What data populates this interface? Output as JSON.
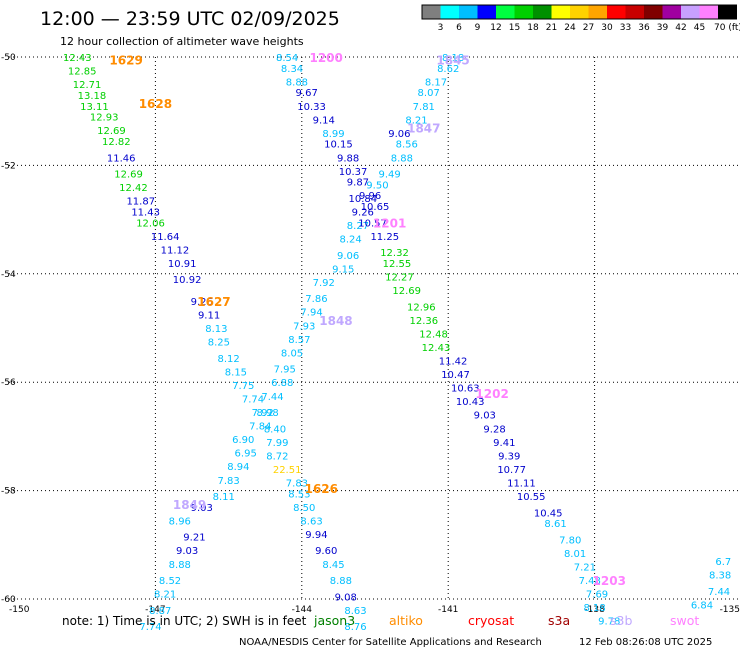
{
  "header": {
    "title": "12:00 — 23:59 UTC 02/09/2025",
    "subtitle": "12 hour collection of altimeter wave heights"
  },
  "scale": {
    "labels": [
      "3",
      "6",
      "9",
      "12",
      "15",
      "18",
      "21",
      "24",
      "27",
      "30",
      "33",
      "36",
      "39",
      "42",
      "45",
      "70 (ft)"
    ],
    "colors": [
      "#7f7f7f",
      "#00ffff",
      "#00bfff",
      "#0000ff",
      "#00ff40",
      "#00d000",
      "#009000",
      "#ffff00",
      "#ffd200",
      "#ffa500",
      "#ff0000",
      "#c80000",
      "#800000",
      "#a000a0",
      "#c8a0ff",
      "#ff80ff",
      "#000000"
    ]
  },
  "note": {
    "text": "note:  1) Time is in UTC; 2) SWH is in feet",
    "missions": [
      {
        "name": "jason3",
        "color": "#007f00"
      },
      {
        "name": "altiko",
        "color": "#ff8c00"
      },
      {
        "name": "cryosat",
        "color": "#ff0000"
      },
      {
        "name": "s3a",
        "color": "#a00000"
      },
      {
        "name": "s3b",
        "color": "#c0a8ff"
      },
      {
        "name": "swot",
        "color": "#ff80ff"
      }
    ]
  },
  "footer": {
    "credit": "NOAA/NESDIS Center for Satellite Applications and Research",
    "timestamp": "12 Feb 08:26:08 UTC 2025"
  },
  "chart_data": {
    "type": "scatter",
    "title": "12:00 — 23:59 UTC 02/09/2025",
    "x_ticks": [
      "-150",
      "-147",
      "-144",
      "-141",
      "-138",
      "-135"
    ],
    "y_ticks": [
      "-50",
      "-52",
      "-54",
      "-56",
      "-58",
      "-60"
    ],
    "xlim": [
      -150,
      -135
    ],
    "ylim": [
      -60,
      -50
    ],
    "grid": true,
    "unit": "ft",
    "labels": [
      {
        "text": "1629",
        "lon": -147.6,
        "lat": -50.05,
        "color": "#ff8c00"
      },
      {
        "text": "1628",
        "lon": -147.0,
        "lat": -50.85,
        "color": "#ff8c00"
      },
      {
        "text": "1627",
        "lon": -145.8,
        "lat": -54.5,
        "color": "#ff8c00"
      },
      {
        "text": "1626",
        "lon": -143.6,
        "lat": -57.95,
        "color": "#ff8c00"
      },
      {
        "text": "1200",
        "lon": -143.5,
        "lat": -50.0,
        "color": "#ff80ff"
      },
      {
        "text": "1845",
        "lon": -140.9,
        "lat": -50.05,
        "color": "#c0a8ff"
      },
      {
        "text": "1847",
        "lon": -141.5,
        "lat": -51.3,
        "color": "#c0a8ff"
      },
      {
        "text": "1201",
        "lon": -142.2,
        "lat": -53.05,
        "color": "#ff80ff"
      },
      {
        "text": "1848",
        "lon": -143.3,
        "lat": -54.85,
        "color": "#c0a8ff"
      },
      {
        "text": "1202",
        "lon": -140.1,
        "lat": -56.2,
        "color": "#ff80ff"
      },
      {
        "text": "1849",
        "lon": -146.3,
        "lat": -58.25,
        "color": "#c0a8ff"
      },
      {
        "text": "1203",
        "lon": -137.7,
        "lat": -59.65,
        "color": "#ff80ff"
      }
    ],
    "series": [
      {
        "color": "#00d000",
        "points": [
          {
            "lon": -148.6,
            "lat": -50.0,
            "v": "12.43"
          },
          {
            "lon": -148.5,
            "lat": -50.25,
            "v": "12.85"
          },
          {
            "lon": -148.4,
            "lat": -50.5,
            "v": "12.71"
          },
          {
            "lon": -148.3,
            "lat": -50.7,
            "v": "13.18"
          },
          {
            "lon": -148.25,
            "lat": -50.9,
            "v": "13.11"
          },
          {
            "lon": -148.05,
            "lat": -51.1,
            "v": "12.93"
          },
          {
            "lon": -147.9,
            "lat": -51.35,
            "v": "12.69"
          },
          {
            "lon": -147.8,
            "lat": -51.55,
            "v": "12.82"
          }
        ]
      },
      {
        "color": "#00d000",
        "points": [
          {
            "lon": -147.55,
            "lat": -52.15,
            "v": "12.69"
          },
          {
            "lon": -147.45,
            "lat": -52.4,
            "v": "12.42"
          },
          {
            "lon": -147.1,
            "lat": -53.05,
            "v": "12.06"
          }
        ]
      },
      {
        "color": "#0000cc",
        "points": [
          {
            "lon": -147.7,
            "lat": -51.85,
            "v": "11.46"
          },
          {
            "lon": -147.3,
            "lat": -52.65,
            "v": "11.87"
          },
          {
            "lon": -147.2,
            "lat": -52.85,
            "v": "11.43"
          },
          {
            "lon": -146.8,
            "lat": -53.3,
            "v": "11.64"
          },
          {
            "lon": -146.6,
            "lat": -53.55,
            "v": "11.12"
          },
          {
            "lon": -146.45,
            "lat": -53.8,
            "v": "10.91"
          },
          {
            "lon": -146.35,
            "lat": -54.1,
            "v": "10.92"
          },
          {
            "lon": -146.05,
            "lat": -54.5,
            "v": "9.26"
          },
          {
            "lon": -145.9,
            "lat": -54.75,
            "v": "9.11"
          }
        ]
      },
      {
        "color": "#00bfff",
        "points": [
          {
            "lon": -145.75,
            "lat": -55.0,
            "v": "8.13"
          },
          {
            "lon": -145.7,
            "lat": -55.25,
            "v": "8.25"
          },
          {
            "lon": -145.5,
            "lat": -55.55,
            "v": "8.12"
          },
          {
            "lon": -145.35,
            "lat": -55.8,
            "v": "8.15"
          },
          {
            "lon": -145.2,
            "lat": -56.05,
            "v": "7.75"
          },
          {
            "lon": -145.0,
            "lat": -56.3,
            "v": "7.74"
          },
          {
            "lon": -144.8,
            "lat": -56.55,
            "v": "7.92"
          },
          {
            "lon": -144.85,
            "lat": -56.8,
            "v": "7.84"
          },
          {
            "lon": -145.2,
            "lat": -57.05,
            "v": "6.90"
          },
          {
            "lon": -145.15,
            "lat": -57.3,
            "v": "6.95"
          },
          {
            "lon": -145.3,
            "lat": -57.55,
            "v": "8.94"
          },
          {
            "lon": -145.5,
            "lat": -57.8,
            "v": "7.83"
          },
          {
            "lon": -145.6,
            "lat": -58.1,
            "v": "8.11"
          }
        ]
      },
      {
        "color": "#0000cc",
        "points": [
          {
            "lon": -146.05,
            "lat": -58.3,
            "v": "9.03"
          },
          {
            "lon": -146.2,
            "lat": -58.85,
            "v": "9.21"
          },
          {
            "lon": -146.35,
            "lat": -59.1,
            "v": "9.03"
          }
        ]
      },
      {
        "color": "#00bfff",
        "points": [
          {
            "lon": -146.5,
            "lat": -58.55,
            "v": "8.96"
          },
          {
            "lon": -146.5,
            "lat": -59.35,
            "v": "8.88"
          },
          {
            "lon": -146.7,
            "lat": -59.65,
            "v": "8.52"
          },
          {
            "lon": -146.8,
            "lat": -59.9,
            "v": "8.21"
          },
          {
            "lon": -146.9,
            "lat": -60.2,
            "v": "8.87"
          },
          {
            "lon": -147.1,
            "lat": -60.5,
            "v": "7.74"
          }
        ]
      },
      {
        "color": "#00bfff",
        "points": [
          {
            "lon": -144.3,
            "lat": -50.0,
            "v": "8.54"
          },
          {
            "lon": -144.2,
            "lat": -50.2,
            "v": "8.34"
          },
          {
            "lon": -144.1,
            "lat": -50.45,
            "v": "8.88"
          }
        ]
      },
      {
        "color": "#0000cc",
        "points": [
          {
            "lon": -143.9,
            "lat": -50.65,
            "v": "9.67"
          },
          {
            "lon": -143.8,
            "lat": -50.9,
            "v": "10.33"
          },
          {
            "lon": -143.55,
            "lat": -51.15,
            "v": "9.14"
          },
          {
            "lon": -143.25,
            "lat": -51.6,
            "v": "10.15"
          },
          {
            "lon": -143.05,
            "lat": -51.85,
            "v": "9.88"
          },
          {
            "lon": -142.95,
            "lat": -52.1,
            "v": "10.37"
          },
          {
            "lon": -142.85,
            "lat": -52.3,
            "v": "9.87"
          },
          {
            "lon": -142.75,
            "lat": -52.6,
            "v": "10.84"
          },
          {
            "lon": -142.75,
            "lat": -52.85,
            "v": "9.26"
          }
        ]
      },
      {
        "color": "#00bfff",
        "points": [
          {
            "lon": -143.35,
            "lat": -51.4,
            "v": "8.99"
          },
          {
            "lon": -142.85,
            "lat": -53.1,
            "v": "8.27"
          },
          {
            "lon": -143.0,
            "lat": -53.35,
            "v": "8.24"
          },
          {
            "lon": -143.05,
            "lat": -53.65,
            "v": "9.06"
          },
          {
            "lon": -143.15,
            "lat": -53.9,
            "v": "9.15"
          },
          {
            "lon": -143.55,
            "lat": -54.15,
            "v": "7.92"
          },
          {
            "lon": -143.7,
            "lat": -54.45,
            "v": "7.86"
          },
          {
            "lon": -143.8,
            "lat": -54.7,
            "v": "7.94"
          },
          {
            "lon": -143.95,
            "lat": -54.95,
            "v": "7.93"
          },
          {
            "lon": -144.05,
            "lat": -55.2,
            "v": "8.57"
          },
          {
            "lon": -144.2,
            "lat": -55.45,
            "v": "8.05"
          },
          {
            "lon": -144.35,
            "lat": -55.75,
            "v": "7.95"
          },
          {
            "lon": -144.4,
            "lat": -56.0,
            "v": "6.88"
          },
          {
            "lon": -144.6,
            "lat": -56.25,
            "v": "7.44"
          },
          {
            "lon": -144.7,
            "lat": -56.55,
            "v": "8.98"
          },
          {
            "lon": -144.55,
            "lat": -56.85,
            "v": "8.40"
          },
          {
            "lon": -144.5,
            "lat": -57.1,
            "v": "7.99"
          },
          {
            "lon": -144.5,
            "lat": -57.35,
            "v": "8.72"
          },
          {
            "lon": -144.1,
            "lat": -57.85,
            "v": "7.83"
          },
          {
            "lon": -144.05,
            "lat": -58.05,
            "v": "8.53"
          },
          {
            "lon": -143.95,
            "lat": -58.3,
            "v": "8.50"
          },
          {
            "lon": -143.8,
            "lat": -58.55,
            "v": "8.63"
          }
        ]
      },
      {
        "color": "#ffd200",
        "points": [
          {
            "lon": -144.3,
            "lat": -57.6,
            "v": "22.51"
          }
        ]
      },
      {
        "color": "#0000cc",
        "points": [
          {
            "lon": -143.7,
            "lat": -58.8,
            "v": "9.94"
          },
          {
            "lon": -143.5,
            "lat": -59.1,
            "v": "9.60"
          },
          {
            "lon": -143.1,
            "lat": -59.95,
            "v": "9.08"
          }
        ]
      },
      {
        "color": "#00bfff",
        "points": [
          {
            "lon": -143.35,
            "lat": -59.35,
            "v": "8.45"
          },
          {
            "lon": -143.2,
            "lat": -59.65,
            "v": "8.88"
          },
          {
            "lon": -142.9,
            "lat": -60.2,
            "v": "8.63"
          },
          {
            "lon": -142.9,
            "lat": -60.5,
            "v": "8.76"
          }
        ]
      },
      {
        "color": "#00bfff",
        "points": [
          {
            "lon": -140.9,
            "lat": -50.0,
            "v": "8.18"
          },
          {
            "lon": -141.0,
            "lat": -50.2,
            "v": "8.62"
          },
          {
            "lon": -141.25,
            "lat": -50.45,
            "v": "8.17"
          },
          {
            "lon": -141.4,
            "lat": -50.65,
            "v": "8.07"
          },
          {
            "lon": -141.5,
            "lat": -50.9,
            "v": "7.81"
          },
          {
            "lon": -141.65,
            "lat": -51.15,
            "v": "8.21"
          },
          {
            "lon": -141.85,
            "lat": -51.6,
            "v": "8.56"
          },
          {
            "lon": -141.95,
            "lat": -51.85,
            "v": "8.88"
          },
          {
            "lon": -142.2,
            "lat": -52.15,
            "v": "9.49"
          },
          {
            "lon": -142.45,
            "lat": -52.35,
            "v": "9.50"
          }
        ]
      },
      {
        "color": "#0000cc",
        "points": [
          {
            "lon": -142.0,
            "lat": -51.4,
            "v": "9.06"
          },
          {
            "lon": -142.6,
            "lat": -52.55,
            "v": "9.96"
          },
          {
            "lon": -142.5,
            "lat": -52.75,
            "v": "10.65"
          },
          {
            "lon": -142.55,
            "lat": -53.05,
            "v": "10.57"
          },
          {
            "lon": -142.3,
            "lat": -53.3,
            "v": "11.25"
          }
        ]
      },
      {
        "color": "#00d000",
        "points": [
          {
            "lon": -142.1,
            "lat": -53.6,
            "v": "12.32"
          },
          {
            "lon": -142.05,
            "lat": -53.8,
            "v": "12.55"
          },
          {
            "lon": -142.0,
            "lat": -54.05,
            "v": "12.27"
          },
          {
            "lon": -141.85,
            "lat": -54.3,
            "v": "12.69"
          },
          {
            "lon": -141.55,
            "lat": -54.6,
            "v": "12.96"
          },
          {
            "lon": -141.5,
            "lat": -54.85,
            "v": "12.36"
          },
          {
            "lon": -141.3,
            "lat": -55.1,
            "v": "12.48"
          },
          {
            "lon": -141.25,
            "lat": -55.35,
            "v": "12.43"
          }
        ]
      },
      {
        "color": "#0000cc",
        "points": [
          {
            "lon": -140.9,
            "lat": -55.6,
            "v": "11.42"
          },
          {
            "lon": -140.85,
            "lat": -55.85,
            "v": "10.47"
          },
          {
            "lon": -140.65,
            "lat": -56.1,
            "v": "10.63"
          },
          {
            "lon": -140.55,
            "lat": -56.35,
            "v": "10.43"
          },
          {
            "lon": -140.25,
            "lat": -56.6,
            "v": "9.03"
          },
          {
            "lon": -140.05,
            "lat": -56.85,
            "v": "9.28"
          },
          {
            "lon": -139.85,
            "lat": -57.1,
            "v": "9.41"
          },
          {
            "lon": -139.75,
            "lat": -57.35,
            "v": "9.39"
          },
          {
            "lon": -139.7,
            "lat": -57.6,
            "v": "10.77"
          },
          {
            "lon": -139.5,
            "lat": -57.85,
            "v": "11.11"
          },
          {
            "lon": -139.3,
            "lat": -58.1,
            "v": "10.55"
          },
          {
            "lon": -138.95,
            "lat": -58.4,
            "v": "10.45"
          }
        ]
      },
      {
        "color": "#00bfff",
        "points": [
          {
            "lon": -138.8,
            "lat": -58.6,
            "v": "8.61"
          },
          {
            "lon": -138.5,
            "lat": -58.9,
            "v": "7.80"
          },
          {
            "lon": -138.4,
            "lat": -59.15,
            "v": "8.01"
          },
          {
            "lon": -138.2,
            "lat": -59.4,
            "v": "7.21"
          },
          {
            "lon": -138.1,
            "lat": -59.65,
            "v": "7.48"
          },
          {
            "lon": -137.95,
            "lat": -59.9,
            "v": "7.69"
          },
          {
            "lon": -138.0,
            "lat": -60.15,
            "v": "8.18"
          },
          {
            "lon": -137.7,
            "lat": -60.4,
            "v": "9.78"
          }
        ]
      },
      {
        "color": "#00bfff",
        "points": [
          {
            "lon": -135.2,
            "lat": -59.3,
            "v": "6.7"
          },
          {
            "lon": -135.2,
            "lat": -59.55,
            "v": "8.38"
          },
          {
            "lon": -135.45,
            "lat": -59.85,
            "v": "7.44"
          },
          {
            "lon": -135.8,
            "lat": -60.1,
            "v": "6.84"
          }
        ]
      }
    ]
  }
}
